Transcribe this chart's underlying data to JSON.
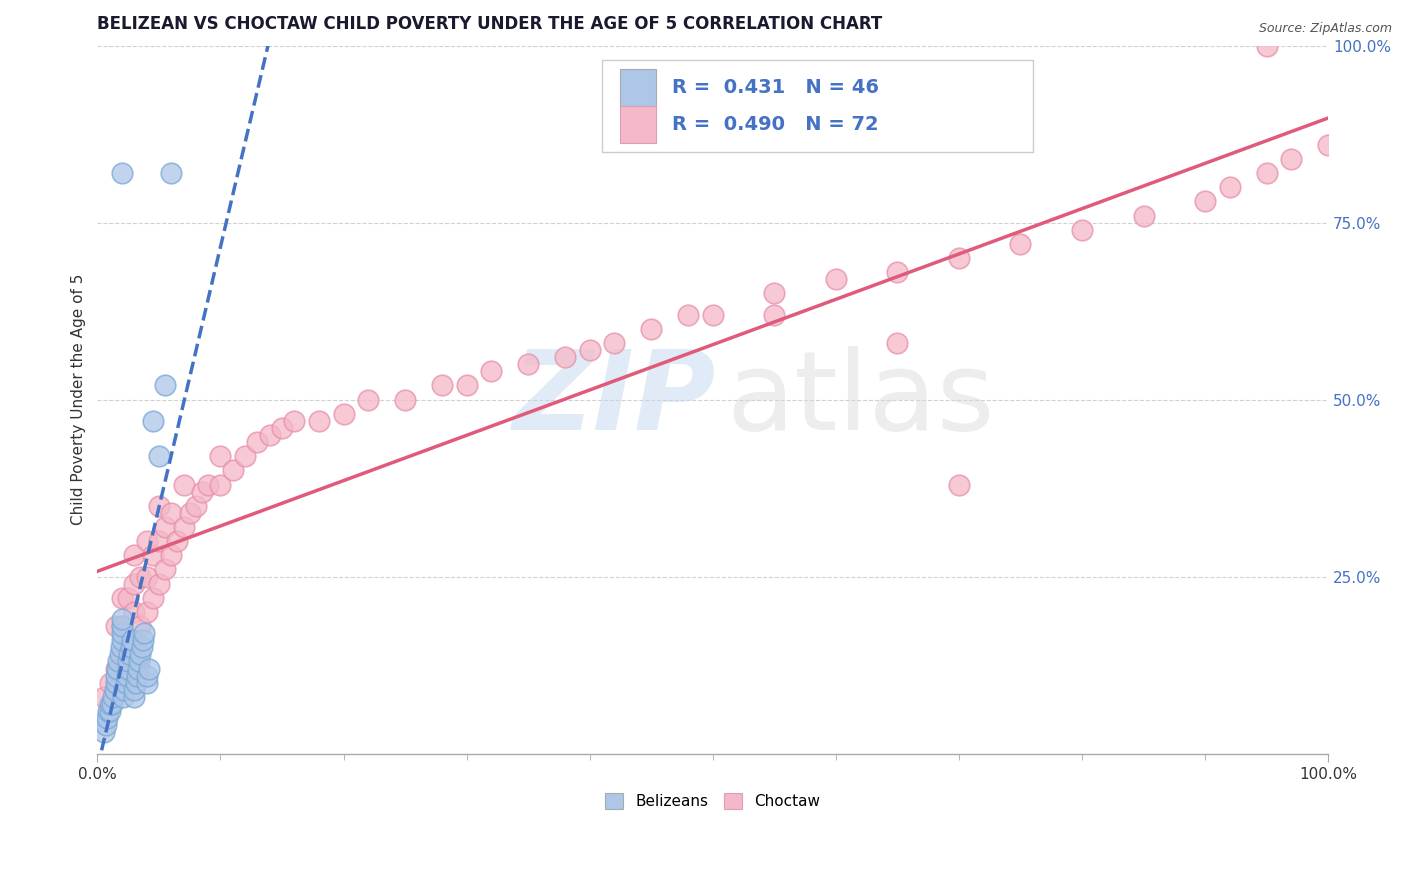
{
  "title": "BELIZEAN VS CHOCTAW CHILD POVERTY UNDER THE AGE OF 5 CORRELATION CHART",
  "source_text": "Source: ZipAtlas.com",
  "ylabel": "Child Poverty Under the Age of 5",
  "xlim": [
    0.0,
    1.0
  ],
  "ylim": [
    0.0,
    1.0
  ],
  "xtick_labels": [
    "0.0%",
    "",
    "",
    "",
    "",
    "",
    "",
    "",
    "",
    "",
    "100.0%"
  ],
  "xtick_positions": [
    0.0,
    0.1,
    0.2,
    0.3,
    0.4,
    0.5,
    0.6,
    0.7,
    0.8,
    0.9,
    1.0
  ],
  "ytick_labels": [
    "25.0%",
    "50.0%",
    "75.0%",
    "100.0%"
  ],
  "ytick_positions": [
    0.25,
    0.5,
    0.75,
    1.0
  ],
  "belizean_R": 0.431,
  "belizean_N": 46,
  "choctaw_R": 0.49,
  "choctaw_N": 72,
  "belizean_color": "#aec6e8",
  "choctaw_color": "#f4b8c8",
  "belizean_edge_color": "#7aa8d4",
  "choctaw_edge_color": "#e890aa",
  "belizean_line_color": "#4472c4",
  "choctaw_line_color": "#e05a7a",
  "watermark_zip_color": "#c5d8f0",
  "watermark_atlas_color": "#d8d8d8",
  "title_fontsize": 12,
  "axis_fontsize": 11,
  "tick_fontsize": 11,
  "legend_fontsize": 14,
  "background_color": "#ffffff",
  "grid_color": "#cccccc",
  "belizean_x": [
    0.005,
    0.007,
    0.008,
    0.009,
    0.01,
    0.01,
    0.012,
    0.013,
    0.014,
    0.015,
    0.015,
    0.016,
    0.017,
    0.018,
    0.019,
    0.02,
    0.02,
    0.02,
    0.02,
    0.02,
    0.021,
    0.022,
    0.023,
    0.024,
    0.025,
    0.025,
    0.026,
    0.027,
    0.028,
    0.03,
    0.03,
    0.031,
    0.032,
    0.033,
    0.034,
    0.035,
    0.036,
    0.037,
    0.038,
    0.04,
    0.04,
    0.042,
    0.045,
    0.05,
    0.055,
    0.06
  ],
  "belizean_y": [
    0.03,
    0.04,
    0.05,
    0.06,
    0.06,
    0.07,
    0.07,
    0.08,
    0.09,
    0.1,
    0.11,
    0.12,
    0.13,
    0.14,
    0.15,
    0.16,
    0.17,
    0.18,
    0.19,
    0.82,
    0.08,
    0.09,
    0.1,
    0.11,
    0.12,
    0.13,
    0.14,
    0.15,
    0.16,
    0.08,
    0.09,
    0.1,
    0.11,
    0.12,
    0.13,
    0.14,
    0.15,
    0.16,
    0.17,
    0.1,
    0.11,
    0.12,
    0.47,
    0.42,
    0.52,
    0.82
  ],
  "choctaw_x": [
    0.005,
    0.01,
    0.015,
    0.015,
    0.02,
    0.02,
    0.02,
    0.025,
    0.025,
    0.03,
    0.03,
    0.03,
    0.03,
    0.035,
    0.035,
    0.04,
    0.04,
    0.04,
    0.045,
    0.045,
    0.05,
    0.05,
    0.05,
    0.055,
    0.055,
    0.06,
    0.06,
    0.065,
    0.07,
    0.07,
    0.075,
    0.08,
    0.085,
    0.09,
    0.1,
    0.1,
    0.11,
    0.12,
    0.13,
    0.14,
    0.15,
    0.16,
    0.18,
    0.2,
    0.22,
    0.25,
    0.28,
    0.3,
    0.32,
    0.35,
    0.38,
    0.4,
    0.42,
    0.45,
    0.48,
    0.5,
    0.55,
    0.6,
    0.65,
    0.7,
    0.75,
    0.8,
    0.85,
    0.9,
    0.92,
    0.95,
    0.97,
    1.0,
    0.55,
    0.65,
    0.7,
    0.95
  ],
  "choctaw_y": [
    0.08,
    0.1,
    0.12,
    0.18,
    0.14,
    0.18,
    0.22,
    0.15,
    0.22,
    0.16,
    0.2,
    0.24,
    0.28,
    0.18,
    0.25,
    0.2,
    0.25,
    0.3,
    0.22,
    0.28,
    0.24,
    0.3,
    0.35,
    0.26,
    0.32,
    0.28,
    0.34,
    0.3,
    0.32,
    0.38,
    0.34,
    0.35,
    0.37,
    0.38,
    0.38,
    0.42,
    0.4,
    0.42,
    0.44,
    0.45,
    0.46,
    0.47,
    0.47,
    0.48,
    0.5,
    0.5,
    0.52,
    0.52,
    0.54,
    0.55,
    0.56,
    0.57,
    0.58,
    0.6,
    0.62,
    0.62,
    0.65,
    0.67,
    0.68,
    0.7,
    0.72,
    0.74,
    0.76,
    0.78,
    0.8,
    0.82,
    0.84,
    0.86,
    0.62,
    0.58,
    0.38,
    1.0
  ]
}
